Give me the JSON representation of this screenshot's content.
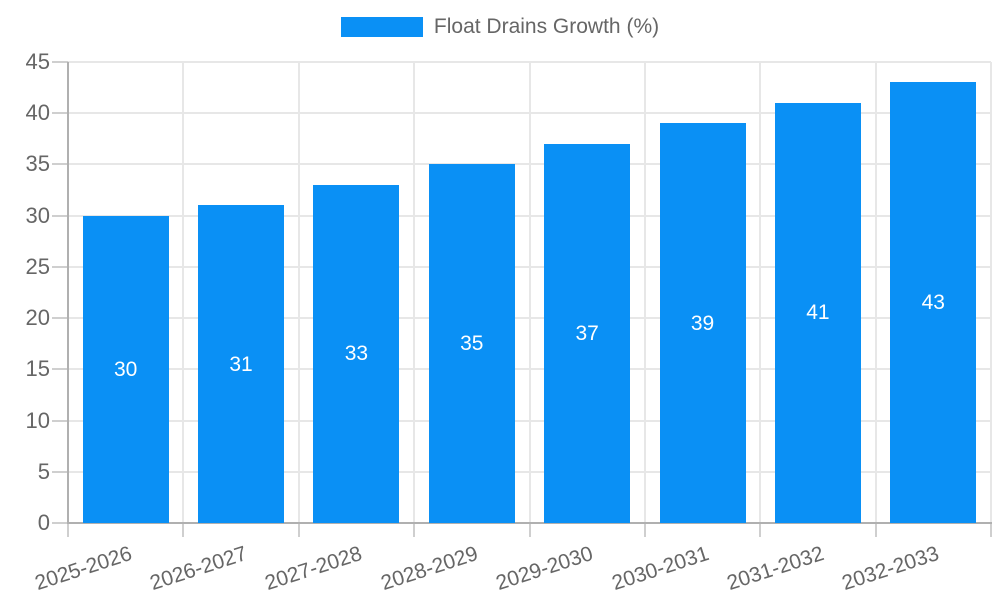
{
  "legend": {
    "label": "Float Drains Growth (%)"
  },
  "chart_data": {
    "type": "bar",
    "title": "Float Drains Growth (%)",
    "categories": [
      "2025-2026",
      "2026-2027",
      "2027-2028",
      "2028-2029",
      "2029-2030",
      "2030-2031",
      "2031-2032",
      "2032-2033"
    ],
    "values": [
      30,
      31,
      33,
      35,
      37,
      39,
      41,
      43
    ],
    "xlabel": "",
    "ylabel": "",
    "ylim": [
      0,
      45
    ],
    "ytick_step": 5,
    "ytick_labels": [
      "0",
      "5",
      "10",
      "15",
      "20",
      "25",
      "30",
      "35",
      "40",
      "45"
    ],
    "grid": true,
    "legend_position": "top",
    "legend_entries": [
      "Float Drains Growth (%)"
    ],
    "bar_color": "#0a90f5",
    "value_label_color": "#ffffff",
    "axis_text_color": "#666666",
    "grid_color": "#e7e7e7",
    "axis_line_color": "#b0b0b0"
  }
}
